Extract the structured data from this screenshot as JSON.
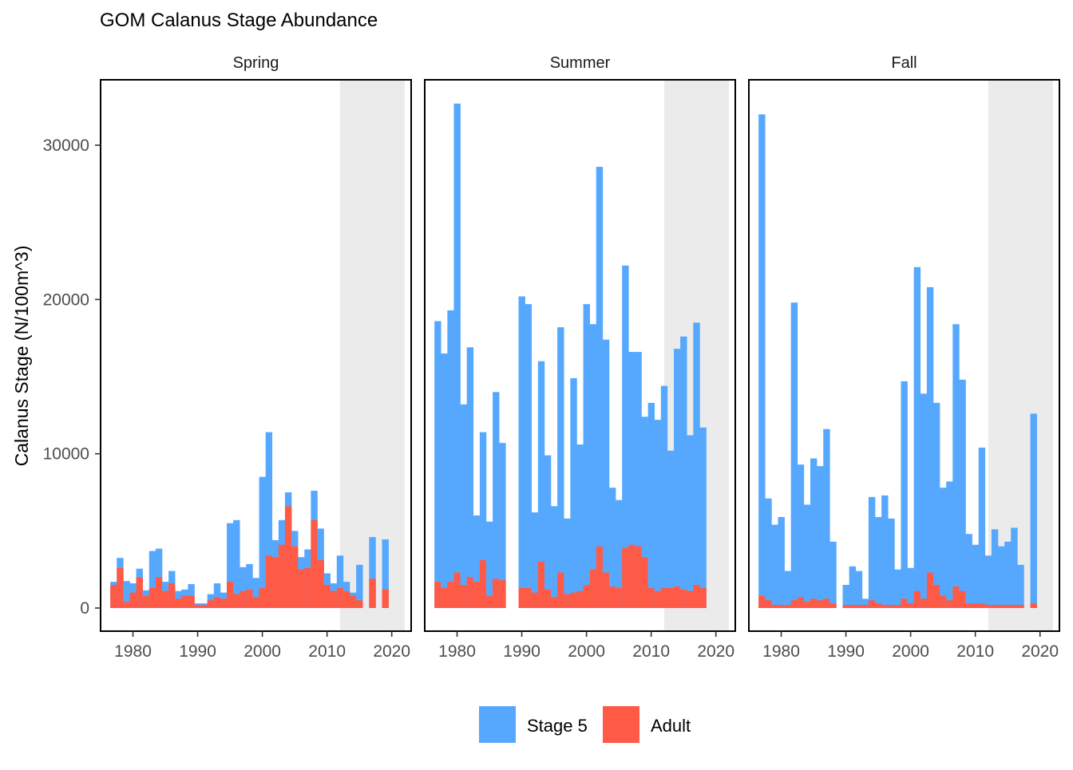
{
  "chart_data": {
    "type": "bar",
    "stacked": true,
    "title": "GOM Calanus Stage Abundance",
    "ylabel": "Calanus Stage (N/100m^3)",
    "xlabel": "",
    "ylim": [
      0,
      33000
    ],
    "xlim": [
      1975,
      2023
    ],
    "y_ticks": [
      0,
      10000,
      20000,
      30000
    ],
    "x_ticks": [
      1980,
      1990,
      2000,
      2010,
      2020
    ],
    "shaded_period": [
      2012,
      2022
    ],
    "grid": false,
    "legend_position": "bottom",
    "series": [
      {
        "name": "Stage 5",
        "color": "#56a8ff"
      },
      {
        "name": "Adult",
        "color": "#ff5a45"
      }
    ],
    "panels": [
      {
        "name": "Spring",
        "years": [
          1977,
          1978,
          1979,
          1980,
          1981,
          1982,
          1983,
          1984,
          1985,
          1986,
          1987,
          1988,
          1989,
          1990,
          1991,
          1992,
          1993,
          1994,
          1995,
          1996,
          1997,
          1998,
          1999,
          2000,
          2001,
          2002,
          2003,
          2004,
          2005,
          2006,
          2007,
          2008,
          2009,
          2010,
          2011,
          2012,
          2013,
          2014,
          2015,
          2016,
          2017,
          2018,
          2019
        ],
        "stage5": [
          1700,
          3250,
          1750,
          1600,
          2550,
          1150,
          3700,
          3850,
          1700,
          2400,
          1100,
          1200,
          1550,
          300,
          300,
          900,
          1600,
          1000,
          5500,
          5700,
          2650,
          2850,
          1950,
          8500,
          11400,
          4400,
          5700,
          7500,
          5000,
          3300,
          3800,
          7600,
          5150,
          2250,
          1600,
          3400,
          1700,
          1000,
          2800,
          0,
          4600,
          0,
          4450
        ],
        "adult": [
          1500,
          2600,
          400,
          1000,
          2000,
          800,
          1300,
          2000,
          1100,
          1600,
          600,
          800,
          800,
          200,
          200,
          500,
          700,
          600,
          1700,
          900,
          1100,
          1200,
          700,
          1300,
          3400,
          3300,
          4100,
          6600,
          4000,
          2500,
          2600,
          5700,
          3100,
          1500,
          1100,
          1300,
          1100,
          800,
          500,
          0,
          1900,
          0,
          1200
        ]
      },
      {
        "name": "Summer",
        "years": [
          1977,
          1978,
          1979,
          1980,
          1981,
          1982,
          1983,
          1984,
          1985,
          1986,
          1987,
          1988,
          1989,
          1990,
          1991,
          1992,
          1993,
          1994,
          1995,
          1996,
          1997,
          1998,
          1999,
          2000,
          2001,
          2002,
          2003,
          2004,
          2005,
          2006,
          2007,
          2008,
          2009,
          2010,
          2011,
          2012,
          2013,
          2014,
          2015,
          2016,
          2017,
          2018,
          2019
        ],
        "stage5": [
          18600,
          16500,
          19300,
          32700,
          13200,
          16900,
          6000,
          11400,
          5600,
          14000,
          10700,
          0,
          0,
          20200,
          19700,
          6200,
          16000,
          9900,
          6600,
          18200,
          5800,
          14900,
          10600,
          19700,
          18400,
          28600,
          17400,
          7800,
          7000,
          22200,
          16600,
          16600,
          12400,
          13300,
          12200,
          14400,
          10200,
          16800,
          17600,
          11200,
          18500,
          11700,
          0
        ],
        "adult": [
          1700,
          1300,
          1700,
          2300,
          1500,
          2000,
          1700,
          3100,
          800,
          1900,
          1800,
          0,
          0,
          1300,
          1300,
          1000,
          3000,
          1200,
          700,
          2300,
          900,
          1000,
          1100,
          1500,
          2500,
          4000,
          2300,
          1400,
          1300,
          3900,
          4100,
          4000,
          3300,
          1300,
          1100,
          1300,
          1300,
          1400,
          1200,
          1100,
          1500,
          1300,
          0
        ]
      },
      {
        "name": "Fall",
        "years": [
          1977,
          1978,
          1979,
          1980,
          1981,
          1982,
          1983,
          1984,
          1985,
          1986,
          1987,
          1988,
          1989,
          1990,
          1991,
          1992,
          1993,
          1994,
          1995,
          1996,
          1997,
          1998,
          1999,
          2000,
          2001,
          2002,
          2003,
          2004,
          2005,
          2006,
          2007,
          2008,
          2009,
          2010,
          2011,
          2012,
          2013,
          2014,
          2015,
          2016,
          2017,
          2018,
          2019
        ],
        "stage5": [
          32000,
          7100,
          5400,
          5900,
          2400,
          19800,
          9300,
          6700,
          9700,
          9200,
          11600,
          4300,
          0,
          1500,
          2700,
          2400,
          600,
          7200,
          5900,
          7300,
          5800,
          2500,
          14700,
          2600,
          22100,
          13900,
          20800,
          13300,
          7800,
          8200,
          18400,
          14800,
          4800,
          4100,
          10400,
          3400,
          5100,
          4000,
          4300,
          5200,
          2800,
          0,
          12600
        ],
        "adult": [
          800,
          500,
          200,
          200,
          200,
          500,
          700,
          400,
          600,
          500,
          600,
          300,
          0,
          200,
          200,
          200,
          200,
          500,
          300,
          200,
          200,
          200,
          600,
          300,
          1100,
          600,
          2300,
          1500,
          800,
          500,
          1400,
          1100,
          300,
          300,
          300,
          200,
          200,
          200,
          200,
          200,
          200,
          0,
          300
        ]
      }
    ]
  }
}
